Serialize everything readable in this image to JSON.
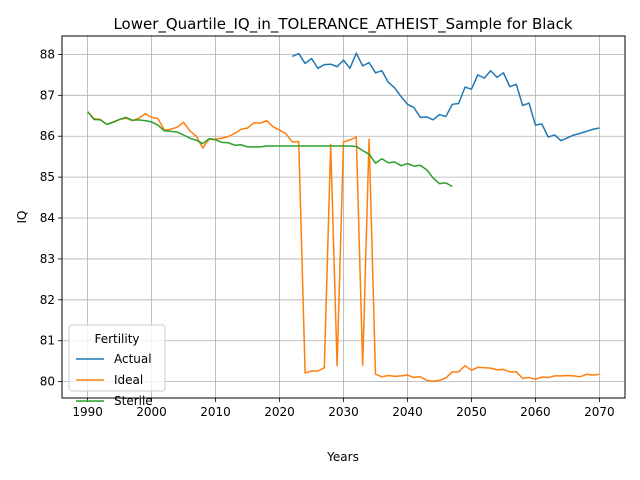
{
  "chart_data": {
    "type": "line",
    "title": "Lower_Quartile_IQ_in_TOLERANCE_ATHEIST_Sample for Black",
    "xlabel": "Years",
    "ylabel": "IQ",
    "xlim": [
      1986,
      2074
    ],
    "ylim": [
      79.6,
      88.45
    ],
    "xticks": [
      1990,
      2000,
      2010,
      2020,
      2030,
      2040,
      2050,
      2060,
      2070
    ],
    "yticks": [
      80,
      81,
      82,
      83,
      84,
      85,
      86,
      87,
      88
    ],
    "grid": true,
    "legend": {
      "title": "Fertility",
      "position": "lower-left"
    },
    "series": [
      {
        "name": "Actual",
        "color": "#1f77b4",
        "points": [
          [
            2022,
            87.95
          ],
          [
            2023,
            88.02
          ],
          [
            2024,
            87.78
          ],
          [
            2025,
            87.9
          ],
          [
            2026,
            87.66
          ],
          [
            2027,
            87.75
          ],
          [
            2028,
            87.76
          ],
          [
            2029,
            87.7
          ],
          [
            2030,
            87.86
          ],
          [
            2031,
            87.66
          ],
          [
            2032,
            88.03
          ],
          [
            2033,
            87.72
          ],
          [
            2034,
            87.8
          ],
          [
            2035,
            87.55
          ],
          [
            2036,
            87.6
          ],
          [
            2037,
            87.32
          ],
          [
            2038,
            87.18
          ],
          [
            2039,
            86.97
          ],
          [
            2040,
            86.78
          ],
          [
            2041,
            86.7
          ],
          [
            2042,
            86.46
          ],
          [
            2043,
            86.47
          ],
          [
            2044,
            86.4
          ],
          [
            2045,
            86.53
          ],
          [
            2046,
            86.48
          ],
          [
            2047,
            86.78
          ],
          [
            2048,
            86.8
          ],
          [
            2049,
            87.2
          ],
          [
            2050,
            87.15
          ],
          [
            2051,
            87.5
          ],
          [
            2052,
            87.42
          ],
          [
            2053,
            87.6
          ],
          [
            2054,
            87.44
          ],
          [
            2055,
            87.55
          ],
          [
            2056,
            87.21
          ],
          [
            2057,
            87.27
          ],
          [
            2058,
            86.75
          ],
          [
            2059,
            86.81
          ],
          [
            2060,
            86.27
          ],
          [
            2061,
            86.3
          ],
          [
            2062,
            85.98
          ],
          [
            2063,
            86.03
          ],
          [
            2064,
            85.89
          ],
          [
            2065,
            85.96
          ],
          [
            2066,
            86.03
          ],
          [
            2067,
            86.07
          ],
          [
            2068,
            86.12
          ],
          [
            2069,
            86.17
          ],
          [
            2070,
            86.2
          ]
        ]
      },
      {
        "name": "Ideal",
        "color": "#ff7f0e",
        "points": [
          [
            1990,
            86.6
          ],
          [
            1991,
            86.43
          ],
          [
            1992,
            86.41
          ],
          [
            1993,
            86.29
          ],
          [
            1994,
            86.35
          ],
          [
            1995,
            86.41
          ],
          [
            1996,
            86.44
          ],
          [
            1997,
            86.38
          ],
          [
            1998,
            86.44
          ],
          [
            1999,
            86.55
          ],
          [
            2000,
            86.46
          ],
          [
            2001,
            86.43
          ],
          [
            2002,
            86.15
          ],
          [
            2003,
            86.17
          ],
          [
            2004,
            86.22
          ],
          [
            2005,
            86.34
          ],
          [
            2006,
            86.13
          ],
          [
            2007,
            86.0
          ],
          [
            2008,
            85.71
          ],
          [
            2009,
            85.93
          ],
          [
            2010,
            85.93
          ],
          [
            2011,
            85.95
          ],
          [
            2012,
            85.99
          ],
          [
            2013,
            86.07
          ],
          [
            2014,
            86.17
          ],
          [
            2015,
            86.2
          ],
          [
            2016,
            86.33
          ],
          [
            2017,
            86.32
          ],
          [
            2018,
            86.38
          ],
          [
            2019,
            86.23
          ],
          [
            2020,
            86.15
          ],
          [
            2021,
            86.06
          ],
          [
            2022,
            85.86
          ],
          [
            2023,
            85.87
          ],
          [
            2024,
            80.21
          ],
          [
            2025,
            80.26
          ],
          [
            2026,
            80.26
          ],
          [
            2027,
            80.34
          ],
          [
            2028,
            85.8
          ],
          [
            2029,
            80.39
          ],
          [
            2030,
            85.86
          ],
          [
            2031,
            85.91
          ],
          [
            2032,
            85.98
          ],
          [
            2033,
            80.4
          ],
          [
            2034,
            85.93
          ],
          [
            2035,
            80.18
          ],
          [
            2036,
            80.12
          ],
          [
            2037,
            80.15
          ],
          [
            2038,
            80.13
          ],
          [
            2039,
            80.14
          ],
          [
            2040,
            80.16
          ],
          [
            2041,
            80.1
          ],
          [
            2042,
            80.12
          ],
          [
            2043,
            80.03
          ],
          [
            2044,
            80.01
          ],
          [
            2045,
            80.03
          ],
          [
            2046,
            80.09
          ],
          [
            2047,
            80.24
          ],
          [
            2048,
            80.24
          ],
          [
            2049,
            80.39
          ],
          [
            2050,
            80.28
          ],
          [
            2051,
            80.35
          ],
          [
            2052,
            80.34
          ],
          [
            2053,
            80.33
          ],
          [
            2054,
            80.29
          ],
          [
            2055,
            80.3
          ],
          [
            2056,
            80.24
          ],
          [
            2057,
            80.24
          ],
          [
            2058,
            80.08
          ],
          [
            2059,
            80.1
          ],
          [
            2060,
            80.06
          ],
          [
            2061,
            80.11
          ],
          [
            2062,
            80.1
          ],
          [
            2063,
            80.14
          ],
          [
            2064,
            80.14
          ],
          [
            2065,
            80.15
          ],
          [
            2066,
            80.14
          ],
          [
            2067,
            80.12
          ],
          [
            2068,
            80.18
          ],
          [
            2069,
            80.16
          ],
          [
            2070,
            80.18
          ]
        ]
      },
      {
        "name": "Sterile",
        "color": "#2ca02c",
        "points": [
          [
            1990,
            86.6
          ],
          [
            1991,
            86.41
          ],
          [
            1992,
            86.4
          ],
          [
            1993,
            86.29
          ],
          [
            1994,
            86.34
          ],
          [
            1995,
            86.41
          ],
          [
            1996,
            86.46
          ],
          [
            1997,
            86.39
          ],
          [
            1998,
            86.4
          ],
          [
            1999,
            86.38
          ],
          [
            2000,
            86.35
          ],
          [
            2001,
            86.27
          ],
          [
            2002,
            86.13
          ],
          [
            2003,
            86.12
          ],
          [
            2004,
            86.1
          ],
          [
            2005,
            86.03
          ],
          [
            2006,
            85.95
          ],
          [
            2007,
            85.9
          ],
          [
            2008,
            85.82
          ],
          [
            2009,
            85.94
          ],
          [
            2010,
            85.91
          ],
          [
            2011,
            85.85
          ],
          [
            2012,
            85.84
          ],
          [
            2013,
            85.78
          ],
          [
            2014,
            85.79
          ],
          [
            2015,
            85.74
          ],
          [
            2016,
            85.74
          ],
          [
            2017,
            85.74
          ],
          [
            2018,
            85.76
          ],
          [
            2019,
            85.76
          ],
          [
            2020,
            85.76
          ],
          [
            2021,
            85.76
          ],
          [
            2022,
            85.76
          ],
          [
            2023,
            85.76
          ],
          [
            2024,
            85.76
          ],
          [
            2025,
            85.76
          ],
          [
            2026,
            85.76
          ],
          [
            2027,
            85.76
          ],
          [
            2028,
            85.76
          ],
          [
            2029,
            85.76
          ],
          [
            2030,
            85.76
          ],
          [
            2031,
            85.76
          ],
          [
            2032,
            85.75
          ],
          [
            2033,
            85.65
          ],
          [
            2034,
            85.56
          ],
          [
            2035,
            85.34
          ],
          [
            2036,
            85.45
          ],
          [
            2037,
            85.35
          ],
          [
            2038,
            85.37
          ],
          [
            2039,
            85.28
          ],
          [
            2040,
            85.33
          ],
          [
            2041,
            85.27
          ],
          [
            2042,
            85.29
          ],
          [
            2043,
            85.18
          ],
          [
            2044,
            84.98
          ],
          [
            2045,
            84.84
          ],
          [
            2046,
            84.86
          ],
          [
            2047,
            84.77
          ]
        ]
      }
    ]
  }
}
